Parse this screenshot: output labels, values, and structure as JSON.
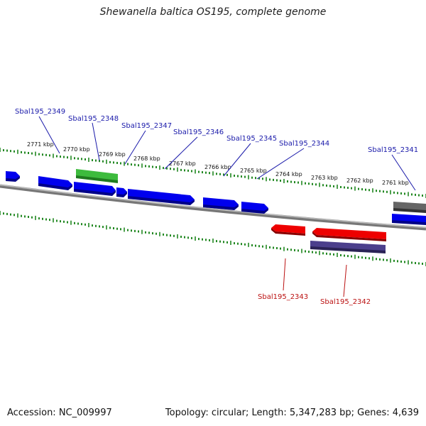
{
  "title": "Shewanella baltica OS195, complete genome",
  "footer": {
    "accession": "Accession: NC_009997",
    "summary": "Topology: circular; Length: 5,347,283 bp; Genes: 4,639"
  },
  "kbp_labels": [
    "2771 kbp",
    "2770 kbp",
    "2769 kbp",
    "2768 kbp",
    "2767 kbp",
    "2766 kbp",
    "2765 kbp",
    "2764 kbp",
    "2763 kbp",
    "2762 kbp",
    "2761 kbp"
  ],
  "gene_labels_forward": [
    "Sbal195_2349",
    "Sbal195_2348",
    "Sbal195_2347",
    "Sbal195_2346",
    "Sbal195_2345",
    "Sbal195_2344",
    "Sbal195_2341"
  ],
  "gene_labels_reverse": [
    "Sbal195_2343",
    "Sbal195_2342"
  ],
  "colors": {
    "forward_gene": "#0000ee",
    "reverse_gene": "#ee0000",
    "highlight_gene": "#33bb33",
    "rna_gene": "#4b3f8c",
    "other_gene": "#555555",
    "backbone": "#8a8a8a",
    "tick": "#228822",
    "forward_label": "#1a1aaa",
    "reverse_label": "#bb1111"
  }
}
